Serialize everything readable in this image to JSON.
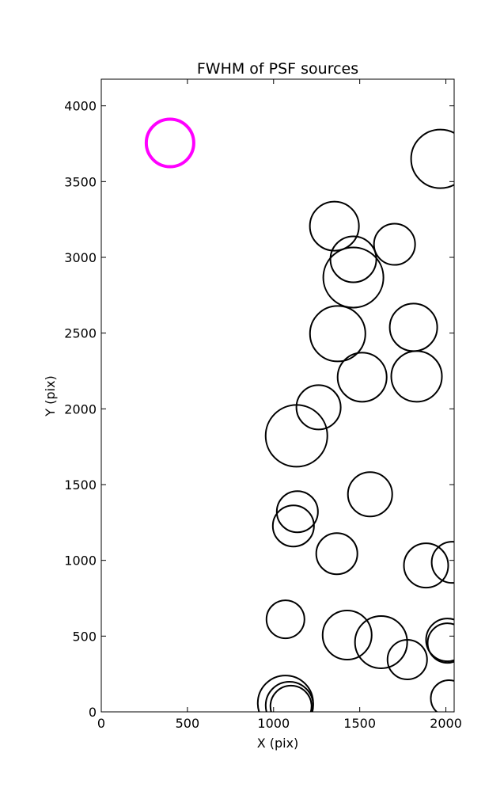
{
  "chart_data": {
    "type": "scatter",
    "title": "FWHM of PSF sources",
    "xlabel": "X (pix)",
    "ylabel": "Y (pix)",
    "xlim": [
      0,
      2048
    ],
    "ylim": [
      0,
      4176
    ],
    "xticks": [
      0,
      500,
      1000,
      1500,
      2000
    ],
    "yticks": [
      0,
      500,
      1000,
      1500,
      2000,
      2500,
      3000,
      3500,
      4000
    ],
    "series": [
      {
        "color": "#ff00ff",
        "line_width": 4,
        "x": [
          399
        ],
        "values": [
          3755
        ],
        "sizes": [
          30
        ]
      },
      {
        "color": "#000000",
        "line_width": 2,
        "x": [
          1968,
          1353,
          1702,
          1463,
          1463,
          1372,
          1812,
          1514,
          1830,
          1261,
          1133,
          1560,
          1138,
          1115,
          1367,
          1885,
          2037,
          1069,
          1427,
          1624,
          1776,
          2009,
          2009,
          1069,
          1092,
          1101,
          2018
        ],
        "values": [
          3650,
          3206,
          3086,
          2987,
          2867,
          2496,
          2538,
          2209,
          2214,
          2010,
          1822,
          1436,
          1321,
          1227,
          1044,
          966,
          987,
          611,
          507,
          460,
          345,
          475,
          454,
          57,
          42,
          37,
          89
        ],
        "sizes": [
          37,
          31,
          26,
          29,
          38,
          35,
          30,
          31,
          32,
          28,
          39,
          28,
          26,
          26,
          26,
          28,
          26,
          24,
          31,
          33,
          25,
          27,
          25,
          35,
          30,
          26,
          23
        ]
      }
    ]
  }
}
